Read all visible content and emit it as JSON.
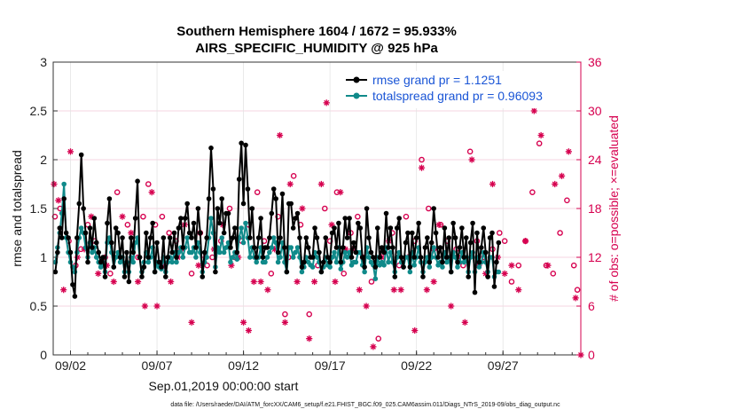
{
  "chart_data": {
    "type": "line",
    "title_line1": "Southern Hemisphere 1604 / 1672 = 95.933%",
    "title_line2": "AIRS_SPECIFIC_HUMIDITY @ 925 hPa",
    "xlabel": "Sep.01,2019 00:00:00 start",
    "ylabel_left": "rmse and totalspread",
    "ylabel_right": "# of obs: o=possible; ×=evaluated",
    "footnote": "data file: /Users/raeder/DAI/ATM_forcXX/CAM6_setup/f.e21.FHIST_BGC.f09_025.CAM6assim.011/Diags_NTrS_2019-09/obs_diag_output.nc",
    "xlim": [
      0,
      30.5
    ],
    "ylim_left": [
      0,
      3
    ],
    "ylim_right": [
      0,
      36
    ],
    "x_ticks": [
      1,
      6,
      11,
      16,
      21,
      26
    ],
    "x_tick_labels": [
      "09/02",
      "09/07",
      "09/12",
      "09/17",
      "09/22",
      "09/27"
    ],
    "y_left_ticks": [
      0,
      0.5,
      1,
      1.5,
      2,
      2.5,
      3
    ],
    "y_left_tick_labels": [
      "0",
      "0.5",
      "1",
      "1.5",
      "2",
      "2.5",
      "3"
    ],
    "y_right_ticks": [
      0,
      6,
      12,
      18,
      24,
      30,
      36
    ],
    "y_right_tick_labels": [
      "0",
      "6",
      "12",
      "18",
      "24",
      "30",
      "36"
    ],
    "grid": true,
    "legend_position": "top-right",
    "x_step": 0.125,
    "series": [
      {
        "name": "rmse grand pr = 1.1251",
        "color": "#000000",
        "marker": "filled-circle",
        "values": [
          0.85,
          1.05,
          1.3,
          1.2,
          1.6,
          1.25,
          1.2,
          1.05,
          0.72,
          0.6,
          1.2,
          1.55,
          2.05,
          1.5,
          1.25,
          0.95,
          1.3,
          1.1,
          1.4,
          1.15,
          1.05,
          0.95,
          1.0,
          0.8,
          1.35,
          1.6,
          1.15,
          0.9,
          1.3,
          1.25,
          1.0,
          1.2,
          0.8,
          1.05,
          0.75,
          1.2,
          1.05,
          1.4,
          1.78,
          1.0,
          0.8,
          0.9,
          1.25,
          1.0,
          1.2,
          1.35,
          0.85,
          1.15,
          0.95,
          0.9,
          1.2,
          0.8,
          1.0,
          1.2,
          1.05,
          1.25,
          1.0,
          1.3,
          1.4,
          1.1,
          1.4,
          1.55,
          1.25,
          1.2,
          1.35,
          1.1,
          1.5,
          1.25,
          0.8,
          1.05,
          1.2,
          1.6,
          2.12,
          1.7,
          0.85,
          1.5,
          1.35,
          1.6,
          1.25,
          1.45,
          1.45,
          1.1,
          1.2,
          1.3,
          1.05,
          1.8,
          2.17,
          1.55,
          2.15,
          1.7,
          1.2,
          1.5,
          1.1,
          1.0,
          1.2,
          1.4,
          1.0,
          1.1,
          1.1,
          1.2,
          1.45,
          1.7,
          1.6,
          1.05,
          1.2,
          1.65,
          1.1,
          0.85,
          1.55,
          1.55,
          1.3,
          1.4,
          1.45,
          1.2,
          0.9,
          0.95,
          1.2,
          1.1,
          1.0,
          1.0,
          1.3,
          1.2,
          1.05,
          0.85,
          0.95,
          1.2,
          1.0,
          0.95,
          1.25,
          1.3,
          1.1,
          1.35,
          0.95,
          1.1,
          1.4,
          1.2,
          1.4,
          1.0,
          1.15,
          1.05,
          1.35,
          1.3,
          1.0,
          0.9,
          1.5,
          1.2,
          1.05,
          1.0,
          0.9,
          1.3,
          1.0,
          1.1,
          1.05,
          1.45,
          1.1,
          1.3,
          1.1,
          0.8,
          1.3,
          1.4,
          1.0,
          0.9,
          1.15,
          1.25,
          0.9,
          1.25,
          1.0,
          1.2,
          1.35,
          1.0,
          0.8,
          1.1,
          1.2,
          0.95,
          1.15,
          1.5,
          1.25,
          1.0,
          1.1,
          0.95,
          1.3,
          1.0,
          1.2,
          0.85,
          1.35,
          1.2,
          0.95,
          1.1,
          1.3,
          1.0,
          1.2,
          0.8,
          1.15,
          1.35,
          0.64,
          1.25,
          0.95,
          1.1,
          1.3,
          1.05,
          0.8,
          1.2,
          1.25,
          0.7,
          0.95,
          1.15
        ],
        "marker_every": 1
      },
      {
        "name": "totalspread grand pr = 0.96093",
        "color": "#108a8a",
        "marker": "filled-circle",
        "values": [
          0.95,
          1.1,
          1.25,
          1.45,
          1.75,
          1.2,
          1.05,
          0.95,
          0.9,
          0.85,
          1.05,
          1.2,
          1.3,
          1.25,
          1.1,
          1.0,
          1.15,
          1.05,
          1.1,
          1.0,
          0.95,
          0.9,
          0.95,
          0.85,
          1.15,
          1.2,
          1.05,
          0.9,
          1.0,
          1.05,
          0.95,
          1.0,
          0.85,
          0.95,
          0.85,
          1.0,
          0.95,
          1.15,
          1.2,
          1.0,
          0.85,
          0.95,
          1.05,
          0.95,
          1.0,
          1.1,
          0.85,
          0.95,
          0.9,
          0.88,
          1.0,
          0.85,
          0.95,
          1.0,
          0.95,
          1.05,
          0.95,
          1.05,
          1.1,
          1.0,
          1.1,
          1.2,
          1.05,
          1.05,
          1.1,
          1.0,
          1.15,
          1.05,
          0.85,
          0.95,
          1.0,
          1.2,
          1.4,
          1.25,
          0.9,
          1.1,
          1.05,
          1.2,
          1.05,
          1.1,
          1.15,
          0.95,
          1.0,
          1.05,
          0.98,
          1.2,
          1.3,
          1.15,
          1.35,
          1.2,
          1.0,
          1.1,
          1.0,
          0.95,
          1.0,
          1.1,
          0.95,
          0.95,
          1.0,
          1.05,
          1.1,
          1.2,
          1.15,
          0.95,
          1.0,
          1.15,
          0.95,
          0.85,
          1.1,
          1.1,
          1.0,
          1.05,
          1.1,
          1.0,
          0.85,
          0.9,
          1.0,
          0.95,
          0.92,
          0.9,
          1.05,
          1.0,
          0.95,
          0.85,
          0.9,
          1.0,
          0.92,
          0.9,
          1.0,
          1.05,
          0.95,
          1.1,
          0.88,
          0.95,
          1.05,
          1.0,
          1.05,
          0.92,
          0.95,
          0.95,
          1.05,
          1.05,
          0.92,
          0.85,
          1.1,
          1.0,
          0.95,
          0.92,
          0.78,
          1.0,
          0.92,
          0.95,
          0.92,
          1.1,
          0.95,
          1.05,
          0.95,
          0.85,
          1.0,
          1.05,
          0.95,
          0.9,
          1.0,
          1.0,
          0.85,
          1.05,
          0.92,
          1.0,
          1.1,
          0.95,
          0.85,
          0.95,
          1.0,
          0.9,
          1.0,
          1.1,
          1.0,
          0.92,
          0.95,
          0.9,
          1.05,
          0.95,
          1.0,
          0.85,
          1.05,
          1.0,
          0.9,
          0.95,
          1.05,
          0.95,
          1.0,
          0.85,
          1.0,
          1.05,
          0.85,
          1.0,
          0.9,
          0.95,
          1.05,
          0.95,
          0.85,
          1.0,
          1.0,
          0.8,
          0.85,
          0.85
        ],
        "marker_every": 1
      }
    ],
    "obs_possible": {
      "name": "possible",
      "color": "#d6004f",
      "marker": "circle",
      "points": [
        [
          0.1,
          17
        ],
        [
          0.4,
          18
        ],
        [
          0.9,
          14
        ],
        [
          1.3,
          11
        ],
        [
          1.6,
          13
        ],
        [
          2.0,
          16
        ],
        [
          2.4,
          14
        ],
        [
          3.0,
          12
        ],
        [
          3.3,
          10
        ],
        [
          3.7,
          20
        ],
        [
          4.3,
          16
        ],
        [
          4.9,
          12
        ],
        [
          5.2,
          17
        ],
        [
          5.5,
          21
        ],
        [
          5.9,
          16
        ],
        [
          6.3,
          17
        ],
        [
          6.7,
          15
        ],
        [
          7.1,
          14
        ],
        [
          7.4,
          13
        ],
        [
          8.0,
          10
        ],
        [
          8.5,
          15
        ],
        [
          8.9,
          11
        ],
        [
          9.2,
          12
        ],
        [
          9.7,
          14
        ],
        [
          10.2,
          18
        ],
        [
          10.5,
          12
        ],
        [
          10.9,
          14
        ],
        [
          11.3,
          16
        ],
        [
          11.8,
          20
        ],
        [
          12.2,
          14
        ],
        [
          12.6,
          10
        ],
        [
          13.0,
          17
        ],
        [
          13.4,
          5
        ],
        [
          13.6,
          12
        ],
        [
          13.9,
          22
        ],
        [
          14.3,
          16
        ],
        [
          14.8,
          5
        ],
        [
          15.3,
          11
        ],
        [
          15.7,
          18
        ],
        [
          16.0,
          14
        ],
        [
          16.4,
          20
        ],
        [
          16.8,
          10
        ],
        [
          17.2,
          15
        ],
        [
          17.6,
          17
        ],
        [
          17.9,
          12
        ],
        [
          18.4,
          9
        ],
        [
          18.8,
          2
        ],
        [
          19.2,
          13
        ],
        [
          19.6,
          15
        ],
        [
          20.0,
          11
        ],
        [
          20.4,
          17
        ],
        [
          20.9,
          14
        ],
        [
          21.3,
          24
        ],
        [
          21.7,
          18
        ],
        [
          22.0,
          13
        ],
        [
          22.4,
          16
        ],
        [
          22.8,
          14
        ],
        [
          23.3,
          13
        ],
        [
          23.7,
          11
        ],
        [
          24.1,
          25
        ],
        [
          24.5,
          14
        ],
        [
          24.9,
          12
        ],
        [
          25.4,
          13
        ],
        [
          25.8,
          15
        ],
        [
          26.1,
          14
        ],
        [
          26.5,
          9
        ],
        [
          26.9,
          11
        ],
        [
          27.3,
          14
        ],
        [
          27.7,
          20
        ],
        [
          28.1,
          26
        ],
        [
          28.5,
          11
        ],
        [
          28.9,
          10
        ],
        [
          29.3,
          15
        ],
        [
          29.7,
          19
        ],
        [
          30.1,
          11
        ],
        [
          30.3,
          8
        ]
      ]
    },
    "obs_evaluated": {
      "name": "evaluated",
      "color": "#d6004f",
      "marker": "asterisk",
      "points": [
        [
          0.05,
          21
        ],
        [
          0.3,
          19
        ],
        [
          0.6,
          8
        ],
        [
          1.0,
          25
        ],
        [
          1.4,
          12
        ],
        [
          1.8,
          13
        ],
        [
          2.2,
          17
        ],
        [
          2.6,
          10
        ],
        [
          3.1,
          11
        ],
        [
          3.5,
          9
        ],
        [
          4.0,
          17
        ],
        [
          4.5,
          15
        ],
        [
          4.9,
          9
        ],
        [
          5.3,
          6
        ],
        [
          5.7,
          20
        ],
        [
          6.0,
          6
        ],
        [
          6.4,
          11
        ],
        [
          6.8,
          9
        ],
        [
          7.2,
          12
        ],
        [
          7.6,
          16
        ],
        [
          8.0,
          4
        ],
        [
          8.4,
          11
        ],
        [
          8.8,
          12
        ],
        [
          9.3,
          13
        ],
        [
          9.8,
          16
        ],
        [
          10.3,
          11
        ],
        [
          10.7,
          12
        ],
        [
          11.0,
          4
        ],
        [
          11.3,
          3
        ],
        [
          11.6,
          9
        ],
        [
          12.0,
          9
        ],
        [
          12.4,
          8
        ],
        [
          12.8,
          13
        ],
        [
          13.1,
          27
        ],
        [
          13.4,
          4
        ],
        [
          13.7,
          21
        ],
        [
          14.1,
          9
        ],
        [
          14.4,
          18
        ],
        [
          14.8,
          2
        ],
        [
          15.1,
          9
        ],
        [
          15.5,
          21
        ],
        [
          15.8,
          31
        ],
        [
          16.1,
          16
        ],
        [
          16.3,
          9
        ],
        [
          16.6,
          20
        ],
        [
          16.9,
          13
        ],
        [
          17.3,
          13
        ],
        [
          17.7,
          8
        ],
        [
          18.1,
          6
        ],
        [
          18.5,
          1
        ],
        [
          19.0,
          12
        ],
        [
          19.4,
          14
        ],
        [
          19.7,
          8
        ],
        [
          20.1,
          8
        ],
        [
          20.5,
          12
        ],
        [
          20.9,
          3
        ],
        [
          21.3,
          23
        ],
        [
          21.6,
          8
        ],
        [
          22.0,
          9
        ],
        [
          22.3,
          16
        ],
        [
          22.7,
          12
        ],
        [
          23.0,
          6
        ],
        [
          23.4,
          12
        ],
        [
          23.8,
          4
        ],
        [
          24.2,
          24
        ],
        [
          24.6,
          11
        ],
        [
          25.0,
          10
        ],
        [
          25.4,
          21
        ],
        [
          25.7,
          12
        ],
        [
          26.1,
          10
        ],
        [
          26.5,
          11
        ],
        [
          26.9,
          8
        ],
        [
          27.3,
          14
        ],
        [
          27.8,
          30
        ],
        [
          28.2,
          27
        ],
        [
          28.6,
          11
        ],
        [
          29.0,
          21
        ],
        [
          29.4,
          22
        ],
        [
          29.8,
          25
        ],
        [
          30.2,
          7
        ],
        [
          30.5,
          0
        ]
      ]
    }
  }
}
